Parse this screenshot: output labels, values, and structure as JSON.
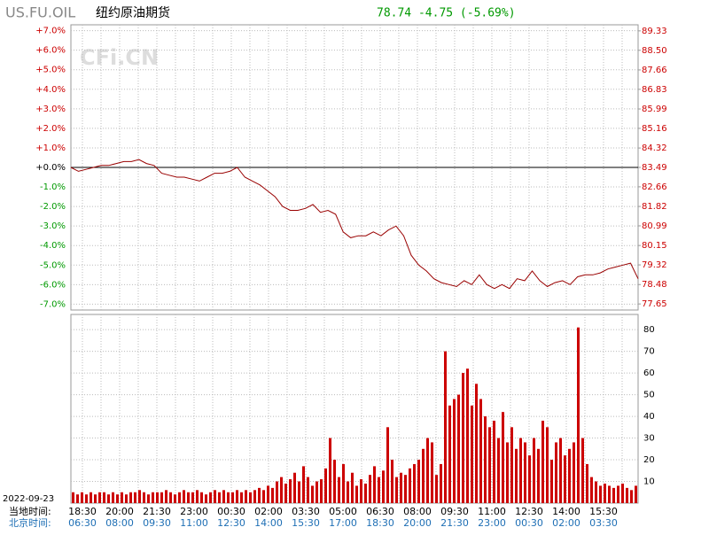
{
  "header": {
    "symbol": "US.FU.OIL",
    "name": "纽约原油期货",
    "quote": "78.74 -4.75 (-5.69%)",
    "watermark": "CFi.CN"
  },
  "x_axis": {
    "date": "2022-09-23",
    "local_title": "当地时间:",
    "beijing_title": "北京时间:",
    "local_labels": [
      "18:30",
      "20:00",
      "21:30",
      "23:00",
      "00:30",
      "02:00",
      "03:30",
      "05:00",
      "06:30",
      "08:00",
      "09:30",
      "11:00",
      "12:30",
      "14:00",
      "15:30"
    ],
    "beijing_labels": [
      "06:30",
      "08:00",
      "09:30",
      "11:00",
      "12:30",
      "14:00",
      "15:30",
      "17:00",
      "18:30",
      "20:00",
      "21:30",
      "23:00",
      "00:30",
      "02:00",
      "03:30"
    ]
  },
  "chart_data": [
    {
      "type": "line",
      "color": "#990000",
      "positive_color": "#cc0000",
      "negative_color": "#009900",
      "zero_color": "#000000",
      "ylim": [
        -7.3,
        7.3
      ],
      "yticks": [
        {
          "value": 7,
          "label": "+7.0%"
        },
        {
          "value": 6,
          "label": "+6.0%"
        },
        {
          "value": 5,
          "label": "+5.0%"
        },
        {
          "value": 4,
          "label": "+4.0%"
        },
        {
          "value": 3,
          "label": "+3.0%"
        },
        {
          "value": 2,
          "label": "+2.0%"
        },
        {
          "value": 1,
          "label": "+1.0%"
        },
        {
          "value": 0,
          "label": "+0.0%"
        },
        {
          "value": -1,
          "label": "-1.0%"
        },
        {
          "value": -2,
          "label": "-2.0%"
        },
        {
          "value": -3,
          "label": "-3.0%"
        },
        {
          "value": -4,
          "label": "-4.0%"
        },
        {
          "value": -5,
          "label": "-5.0%"
        },
        {
          "value": -6,
          "label": "-6.0%"
        },
        {
          "value": -7,
          "label": "-7.0%"
        }
      ],
      "y2lim": [
        77.39,
        89.59
      ],
      "y2ticks": [
        89.33,
        {
          "value": 88.5,
          "label": "88.50"
        },
        87.66,
        86.83,
        85.99,
        85.16,
        84.32,
        83.49,
        82.66,
        81.82,
        80.99,
        80.15,
        79.32,
        78.48,
        77.65
      ],
      "values": [
        0,
        -0.2,
        -0.1,
        0,
        0.1,
        0.1,
        0.2,
        0.3,
        0.3,
        0.4,
        0.2,
        0.1,
        -0.3,
        -0.4,
        -0.5,
        -0.5,
        -0.6,
        -0.7,
        -0.5,
        -0.3,
        -0.3,
        -0.2,
        0,
        -0.5,
        -0.7,
        -0.9,
        -1.2,
        -1.5,
        -2.0,
        -2.2,
        -2.2,
        -2.1,
        -1.9,
        -2.3,
        -2.2,
        -2.4,
        -3.3,
        -3.6,
        -3.5,
        -3.5,
        -3.3,
        -3.5,
        -3.2,
        -3.0,
        -3.5,
        -4.5,
        -5.0,
        -5.3,
        -5.7,
        -5.9,
        -6.0,
        -6.1,
        -5.8,
        -6.0,
        -5.5,
        -6.0,
        -6.2,
        -6.0,
        -6.2,
        -5.7,
        -5.8,
        -5.3,
        -5.8,
        -6.1,
        -5.9,
        -5.8,
        -6.0,
        -5.6,
        -5.5,
        -5.5,
        -5.4,
        -5.2,
        -5.1,
        -5.0,
        -4.9,
        -5.7
      ]
    },
    {
      "type": "bar",
      "color": "#cc0000",
      "ylim": [
        0,
        87
      ],
      "yticks": [
        10,
        20,
        30,
        40,
        50,
        60,
        70,
        80
      ],
      "values": [
        5,
        4,
        5,
        4,
        5,
        4,
        5,
        5,
        4,
        5,
        4,
        5,
        4,
        5,
        5,
        6,
        5,
        4,
        5,
        5,
        5,
        6,
        5,
        4,
        5,
        6,
        5,
        5,
        6,
        5,
        4,
        5,
        6,
        5,
        6,
        5,
        5,
        6,
        5,
        6,
        5,
        6,
        7,
        6,
        8,
        7,
        10,
        12,
        9,
        11,
        14,
        10,
        17,
        12,
        8,
        10,
        11,
        16,
        30,
        20,
        12,
        18,
        10,
        14,
        8,
        11,
        9,
        13,
        17,
        12,
        15,
        35,
        20,
        12,
        14,
        13,
        16,
        18,
        20,
        25,
        30,
        28,
        13,
        18,
        70,
        45,
        48,
        50,
        60,
        62,
        45,
        55,
        48,
        40,
        35,
        38,
        30,
        42,
        28,
        35,
        25,
        30,
        28,
        22,
        30,
        25,
        38,
        35,
        20,
        28,
        30,
        22,
        25,
        28,
        81,
        30,
        18,
        12,
        10,
        8,
        9,
        8,
        7,
        8,
        9,
        7,
        6,
        8
      ]
    }
  ]
}
